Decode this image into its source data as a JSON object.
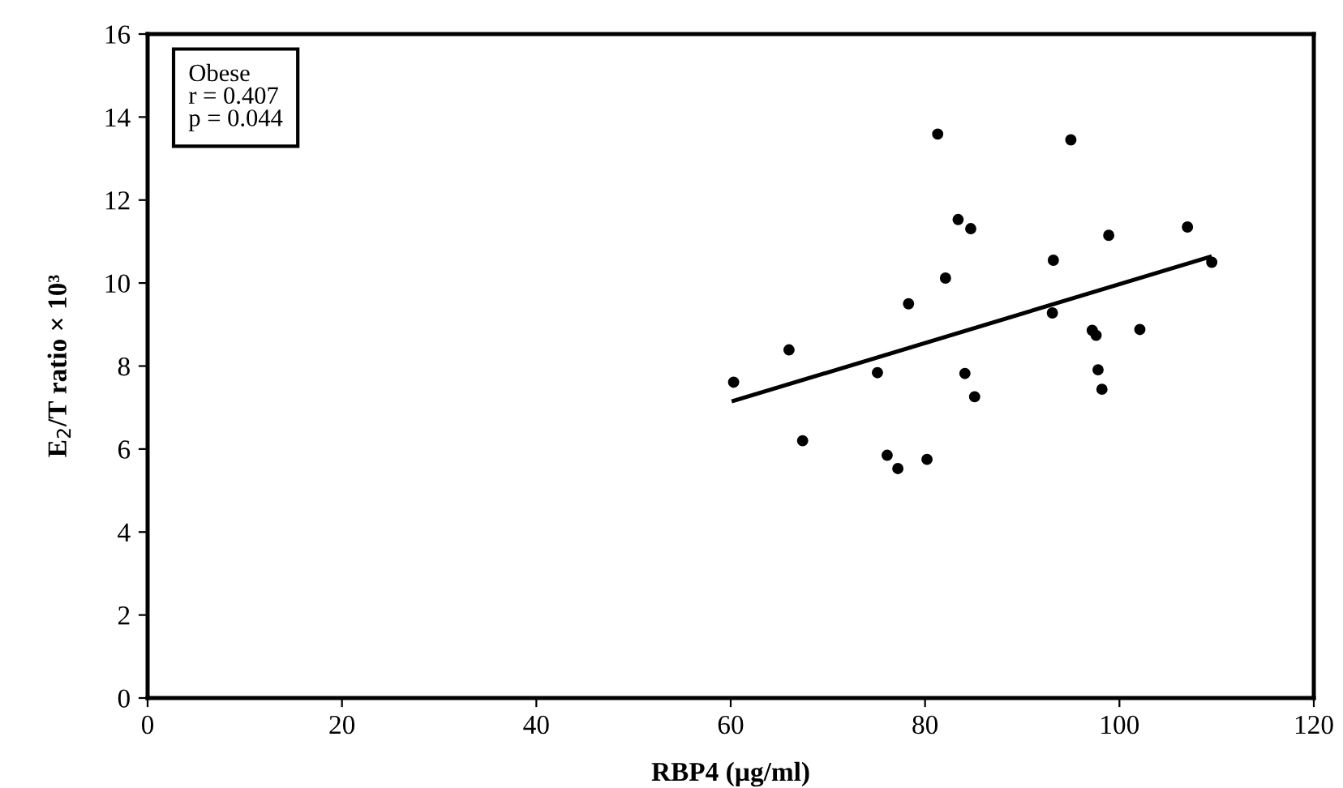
{
  "chart_data": {
    "type": "scatter",
    "xlabel": "RBP4 (µg/ml)",
    "ylabel": "E$_{2}$/T ratio × 10³",
    "annotations": [
      "Obese\nr = 0.407\np = 0.044"
    ],
    "xlim": [
      0,
      120
    ],
    "xticks": [
      0,
      20,
      40,
      60,
      80,
      100,
      120
    ],
    "ylim": [
      0,
      16
    ],
    "yticks": [
      0,
      2,
      4,
      6,
      8,
      10,
      12,
      14,
      16
    ],
    "grid": false,
    "legend": false,
    "marker": "circle",
    "series": [
      {
        "color": "#000000",
        "x": [
          60.3,
          66.0,
          67.4,
          75.1,
          76.1,
          77.2,
          78.3,
          80.2,
          81.3,
          82.1,
          83.4,
          84.1,
          84.7,
          85.1,
          93.1,
          93.2,
          95.0,
          97.2,
          97.6,
          97.8,
          98.2,
          98.9,
          102.1,
          107.0,
          109.5
        ],
        "values": [
          7.61,
          8.39,
          6.2,
          7.84,
          5.85,
          5.53,
          9.5,
          5.75,
          13.59,
          10.12,
          11.53,
          7.82,
          11.31,
          7.26,
          9.28,
          10.55,
          13.45,
          8.86,
          8.74,
          7.91,
          7.44,
          11.15,
          8.88,
          11.35,
          10.5
        ]
      },
      {
        "type": "line",
        "color": "#000000",
        "marker": "none",
        "line_style": "solid",
        "x": [
          60.3,
          109.3
        ],
        "values": [
          7.16,
          10.63
        ]
      }
    ]
  }
}
